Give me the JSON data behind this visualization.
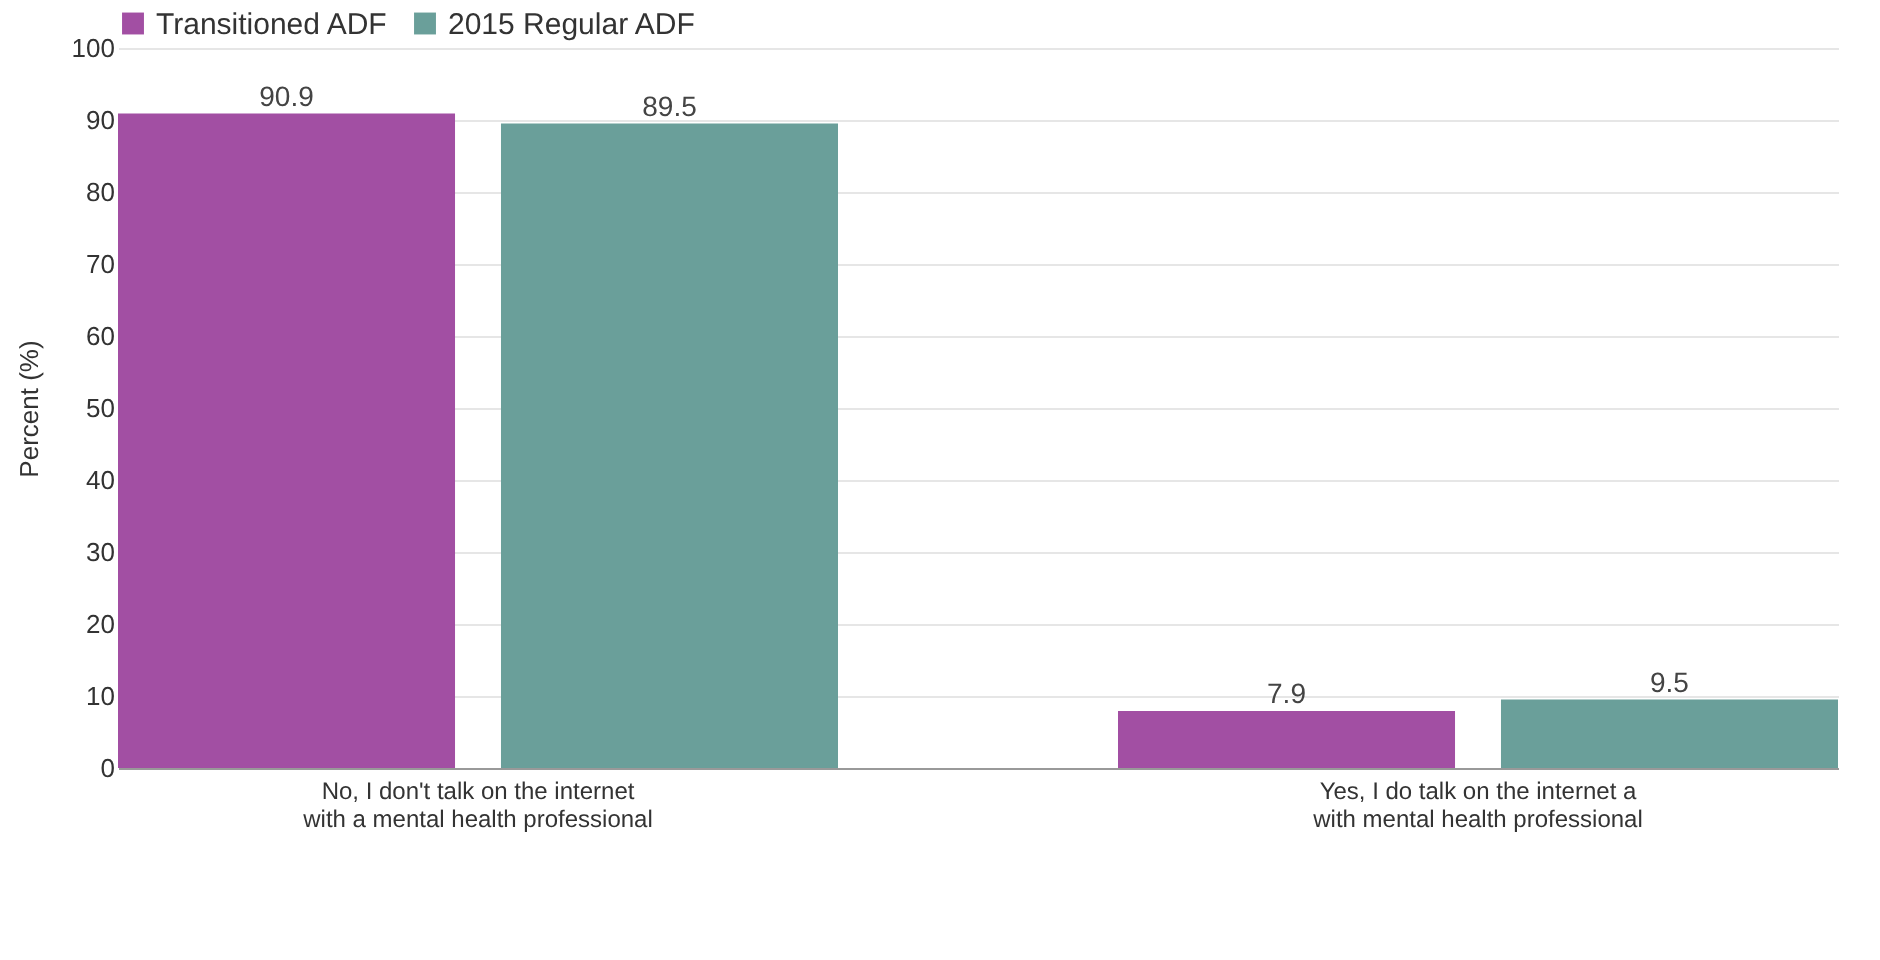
{
  "chart_data": {
    "type": "bar",
    "ylabel": "Percent (%)",
    "categories": [
      "No, I don't talk on the internet with a mental health professional",
      "Yes, I do talk on the internet a with mental health professional"
    ],
    "series": [
      {
        "name": "Transitioned ADF",
        "color": "#a24fa3",
        "values": [
          90.9,
          7.9
        ]
      },
      {
        "name": "2015 Regular ADF",
        "color": "#6a9f9a",
        "values": [
          89.5,
          9.5
        ]
      }
    ],
    "ylim": [
      0,
      100
    ],
    "yticks": [
      0,
      10,
      20,
      30,
      40,
      50,
      60,
      70,
      80,
      90,
      100
    ],
    "grid": "y",
    "legend": "top left",
    "data_labels": true
  }
}
